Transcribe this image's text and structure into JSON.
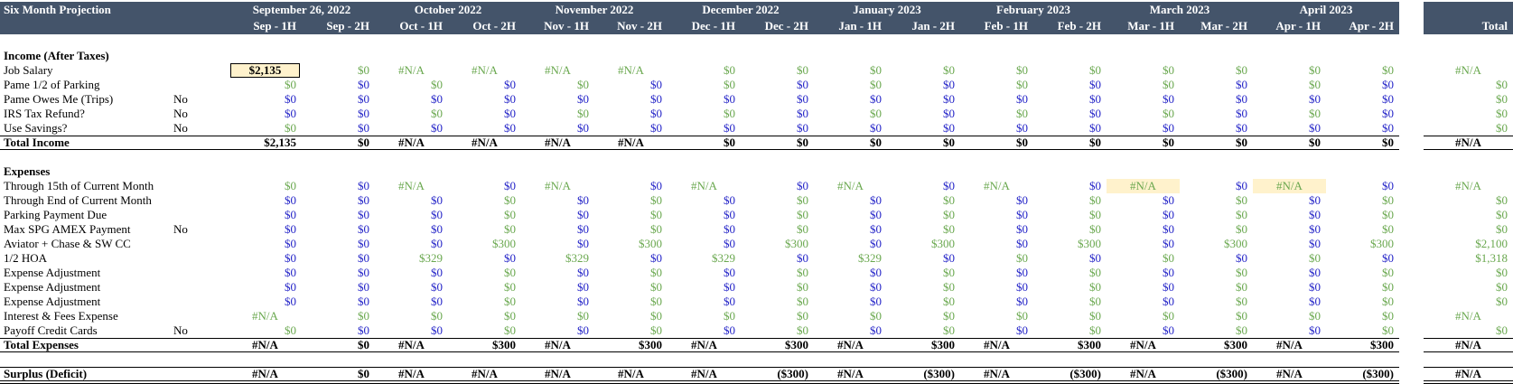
{
  "header": {
    "title": "Six Month Projection",
    "months": [
      "September 26, 2022",
      "October 2022",
      "November 2022",
      "December 2022",
      "January 2023",
      "February 2023",
      "March 2023",
      "April 2023"
    ],
    "periods": [
      "Sep - 1H",
      "Sep - 2H",
      "Oct - 1H",
      "Oct - 2H",
      "Nov - 1H",
      "Nov - 2H",
      "Dec - 1H",
      "Dec - 2H",
      "Jan - 1H",
      "Jan - 2H",
      "Feb - 1H",
      "Feb - 2H",
      "Mar - 1H",
      "Mar - 2H",
      "Apr - 1H",
      "Apr - 2H"
    ],
    "total": "Total"
  },
  "palette": {
    "g": "#6aa84f",
    "b": "#2424c8",
    "k": "#000000",
    "h": "#fff2cc",
    "head": "#44546a"
  },
  "income": {
    "title": "Income (After Taxes)",
    "rows": [
      {
        "label": "Job Salary",
        "cells": [
          "$2,135",
          "$0",
          "#N/A",
          "#N/A",
          "#N/A",
          "#N/A",
          "$0",
          "$0",
          "$0",
          "$0",
          "$0",
          "$0",
          "$0",
          "$0",
          "$0",
          "$0"
        ],
        "total": "#N/A",
        "colors": "kgggggggggggggggg",
        "highlight": [
          0
        ]
      },
      {
        "label": "Pame 1/2 of Parking",
        "cells": [
          "$0",
          "$0",
          "$0",
          "$0",
          "$0",
          "$0",
          "$0",
          "$0",
          "$0",
          "$0",
          "$0",
          "$0",
          "$0",
          "$0",
          "$0",
          "$0"
        ],
        "total": "$0",
        "colors": "gbgbgbgbgbgbgbgbg"
      },
      {
        "label": "Pame Owes Me (Trips)",
        "flag": "No",
        "cells": [
          "$0",
          "$0",
          "$0",
          "$0",
          "$0",
          "$0",
          "$0",
          "$0",
          "$0",
          "$0",
          "$0",
          "$0",
          "$0",
          "$0",
          "$0",
          "$0"
        ],
        "total": "$0",
        "colors": "bbbbbbbbbbbbbbbbg"
      },
      {
        "label": "IRS Tax Refund?",
        "flag": "No",
        "cells": [
          "$0",
          "$0",
          "$0",
          "$0",
          "$0",
          "$0",
          "$0",
          "$0",
          "$0",
          "$0",
          "$0",
          "$0",
          "$0",
          "$0",
          "$0",
          "$0"
        ],
        "total": "$0",
        "colors": "bbgbgbgbgbgbgbgbg"
      },
      {
        "label": "Use Savings?",
        "flag": "No",
        "cells": [
          "$0",
          "$0",
          "$0",
          "$0",
          "$0",
          "$0",
          "$0",
          "$0",
          "$0",
          "$0",
          "$0",
          "$0",
          "$0",
          "$0",
          "$0",
          "$0"
        ],
        "total": "$0",
        "colors": "gbbbbbbbbbbbbbbbg"
      }
    ],
    "summary": {
      "label": "Total Income",
      "cells": [
        "$2,135",
        "$0",
        "#N/A",
        "#N/A",
        "#N/A",
        "#N/A",
        "$0",
        "$0",
        "$0",
        "$0",
        "$0",
        "$0",
        "$0",
        "$0",
        "$0",
        "$0"
      ],
      "total": "#N/A"
    }
  },
  "expenses": {
    "title": "Expenses",
    "rows": [
      {
        "label": "Through 15th of Current Month",
        "cells": [
          "$0",
          "$0",
          "#N/A",
          "$0",
          "#N/A",
          "$0",
          "#N/A",
          "$0",
          "#N/A",
          "$0",
          "#N/A",
          "$0",
          "#N/A",
          "$0",
          "#N/A",
          "$0"
        ],
        "total": "#N/A",
        "colors": "gbgbgbgbgbgbgbgbg",
        "highlight": [
          12,
          14
        ]
      },
      {
        "label": "Through End of Current Month",
        "cells": [
          "$0",
          "$0",
          "$0",
          "$0",
          "$0",
          "$0",
          "$0",
          "$0",
          "$0",
          "$0",
          "$0",
          "$0",
          "$0",
          "$0",
          "$0",
          "$0"
        ],
        "total": "$0",
        "colors": "bbbgbgbgbgbgbgbgg"
      },
      {
        "label": "Parking Payment Due",
        "cells": [
          "$0",
          "$0",
          "$0",
          "$0",
          "$0",
          "$0",
          "$0",
          "$0",
          "$0",
          "$0",
          "$0",
          "$0",
          "$0",
          "$0",
          "$0",
          "$0"
        ],
        "total": "$0",
        "colors": "bbbgbgbgbgbgbgbgg"
      },
      {
        "label": "Max SPG AMEX Payment",
        "flag": "No",
        "cells": [
          "$0",
          "$0",
          "$0",
          "$0",
          "$0",
          "$0",
          "$0",
          "$0",
          "$0",
          "$0",
          "$0",
          "$0",
          "$0",
          "$0",
          "$0",
          "$0"
        ],
        "total": "$0",
        "colors": "bbbgbgbgbgbgbgbgg"
      },
      {
        "label": "Aviator + Chase & SW CC",
        "cells": [
          "$0",
          "$0",
          "$0",
          "$300",
          "$0",
          "$300",
          "$0",
          "$300",
          "$0",
          "$300",
          "$0",
          "$300",
          "$0",
          "$300",
          "$0",
          "$300"
        ],
        "total": "$2,100",
        "colors": "bbbgbgbgbgbgbgbgg"
      },
      {
        "label": "1/2 HOA",
        "cells": [
          "$0",
          "$0",
          "$329",
          "$0",
          "$329",
          "$0",
          "$329",
          "$0",
          "$329",
          "$0",
          "$0",
          "$0",
          "$0",
          "$0",
          "$0",
          "$0"
        ],
        "total": "$1,318",
        "colors": "bbgbgbgbgbgbgbgbg"
      },
      {
        "label": "Expense Adjustment",
        "cells": [
          "$0",
          "$0",
          "$0",
          "$0",
          "$0",
          "$0",
          "$0",
          "$0",
          "$0",
          "$0",
          "$0",
          "$0",
          "$0",
          "$0",
          "$0",
          "$0"
        ],
        "total": "$0",
        "colors": "bbbgbgbgbgbgbgbgg"
      },
      {
        "label": "Expense Adjustment",
        "cells": [
          "$0",
          "$0",
          "$0",
          "$0",
          "$0",
          "$0",
          "$0",
          "$0",
          "$0",
          "$0",
          "$0",
          "$0",
          "$0",
          "$0",
          "$0",
          "$0"
        ],
        "total": "$0",
        "colors": "bbbgbgbgbgbgbgbgg"
      },
      {
        "label": "Expense Adjustment",
        "cells": [
          "$0",
          "$0",
          "$0",
          "$0",
          "$0",
          "$0",
          "$0",
          "$0",
          "$0",
          "$0",
          "$0",
          "$0",
          "$0",
          "$0",
          "$0",
          "$0"
        ],
        "total": "$0",
        "colors": "bbbgbgbgbgbgbgbgg"
      },
      {
        "label": "Interest & Fees Expense",
        "cells": [
          "#N/A",
          "$0",
          "$0",
          "$0",
          "$0",
          "$0",
          "$0",
          "$0",
          "$0",
          "$0",
          "$0",
          "$0",
          "$0",
          "$0",
          "$0",
          "$0"
        ],
        "total": "#N/A",
        "colors": "ggggggggggggggggg"
      },
      {
        "label": "Payoff Credit Cards",
        "flag": "No",
        "cells": [
          "$0",
          "$0",
          "$0",
          "$0",
          "$0",
          "$0",
          "$0",
          "$0",
          "$0",
          "$0",
          "$0",
          "$0",
          "$0",
          "$0",
          "$0",
          "$0"
        ],
        "total": "$0",
        "colors": "gbbgbgbgbgbgbgbgg"
      }
    ],
    "summary": {
      "label": "Total Expenses",
      "cells": [
        "#N/A",
        "$0",
        "#N/A",
        "$300",
        "#N/A",
        "$300",
        "#N/A",
        "$300",
        "#N/A",
        "$300",
        "#N/A",
        "$300",
        "#N/A",
        "$300",
        "#N/A",
        "$300"
      ],
      "total": "#N/A"
    }
  },
  "surplus": {
    "label": "Surplus (Deficit)",
    "cells": [
      "#N/A",
      "$0",
      "#N/A",
      "#N/A",
      "#N/A",
      "#N/A",
      "#N/A",
      "($300)",
      "#N/A",
      "($300)",
      "#N/A",
      "($300)",
      "#N/A",
      "($300)",
      "#N/A",
      "($300)"
    ],
    "total": "#N/A"
  }
}
